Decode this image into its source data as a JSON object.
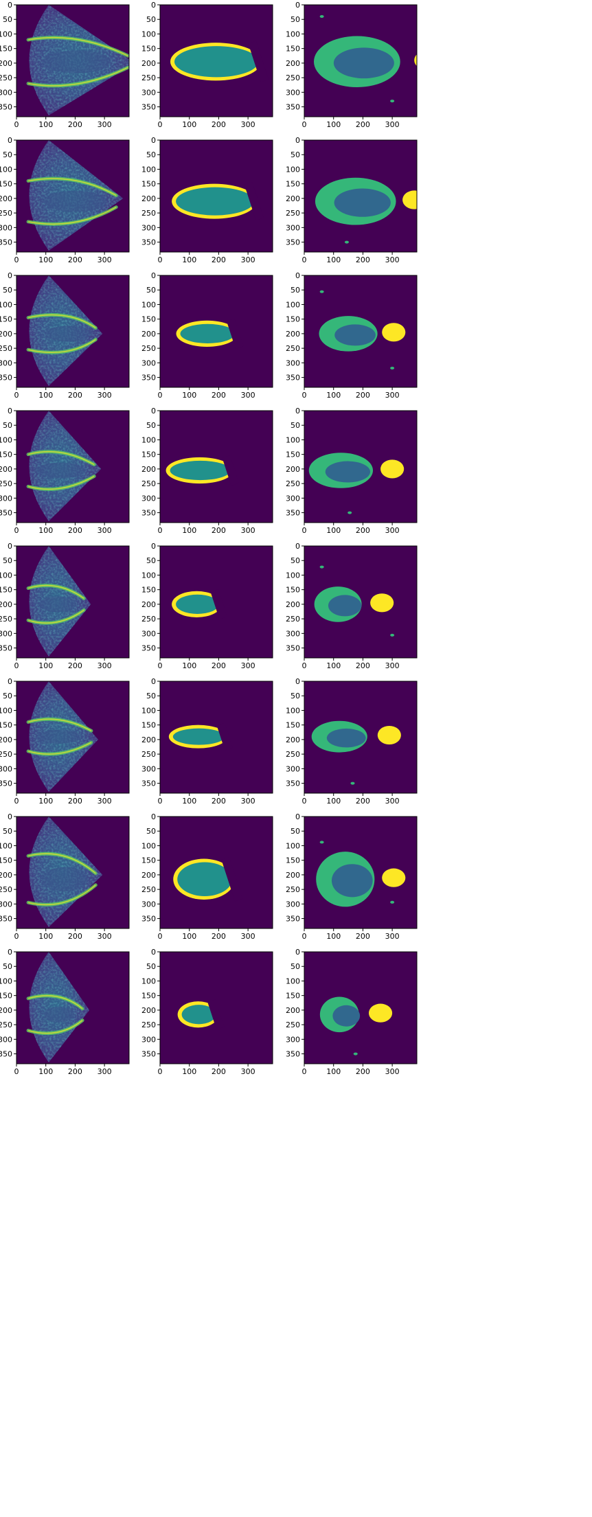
{
  "figure": {
    "rows": 8,
    "columns": [
      "ultrasound-image",
      "ground-truth-mask",
      "predicted-mask"
    ],
    "x_ticks": [
      "0",
      "100",
      "200",
      "300"
    ],
    "y_ticks": [
      "0",
      "50",
      "100",
      "150",
      "200",
      "250",
      "300",
      "350"
    ],
    "image_size": 384,
    "colors": {
      "background": "#440154",
      "blue_class": "#31688e",
      "teal_class": "#21918c",
      "green_class": "#35b779",
      "yellow_class": "#fde725"
    }
  }
}
